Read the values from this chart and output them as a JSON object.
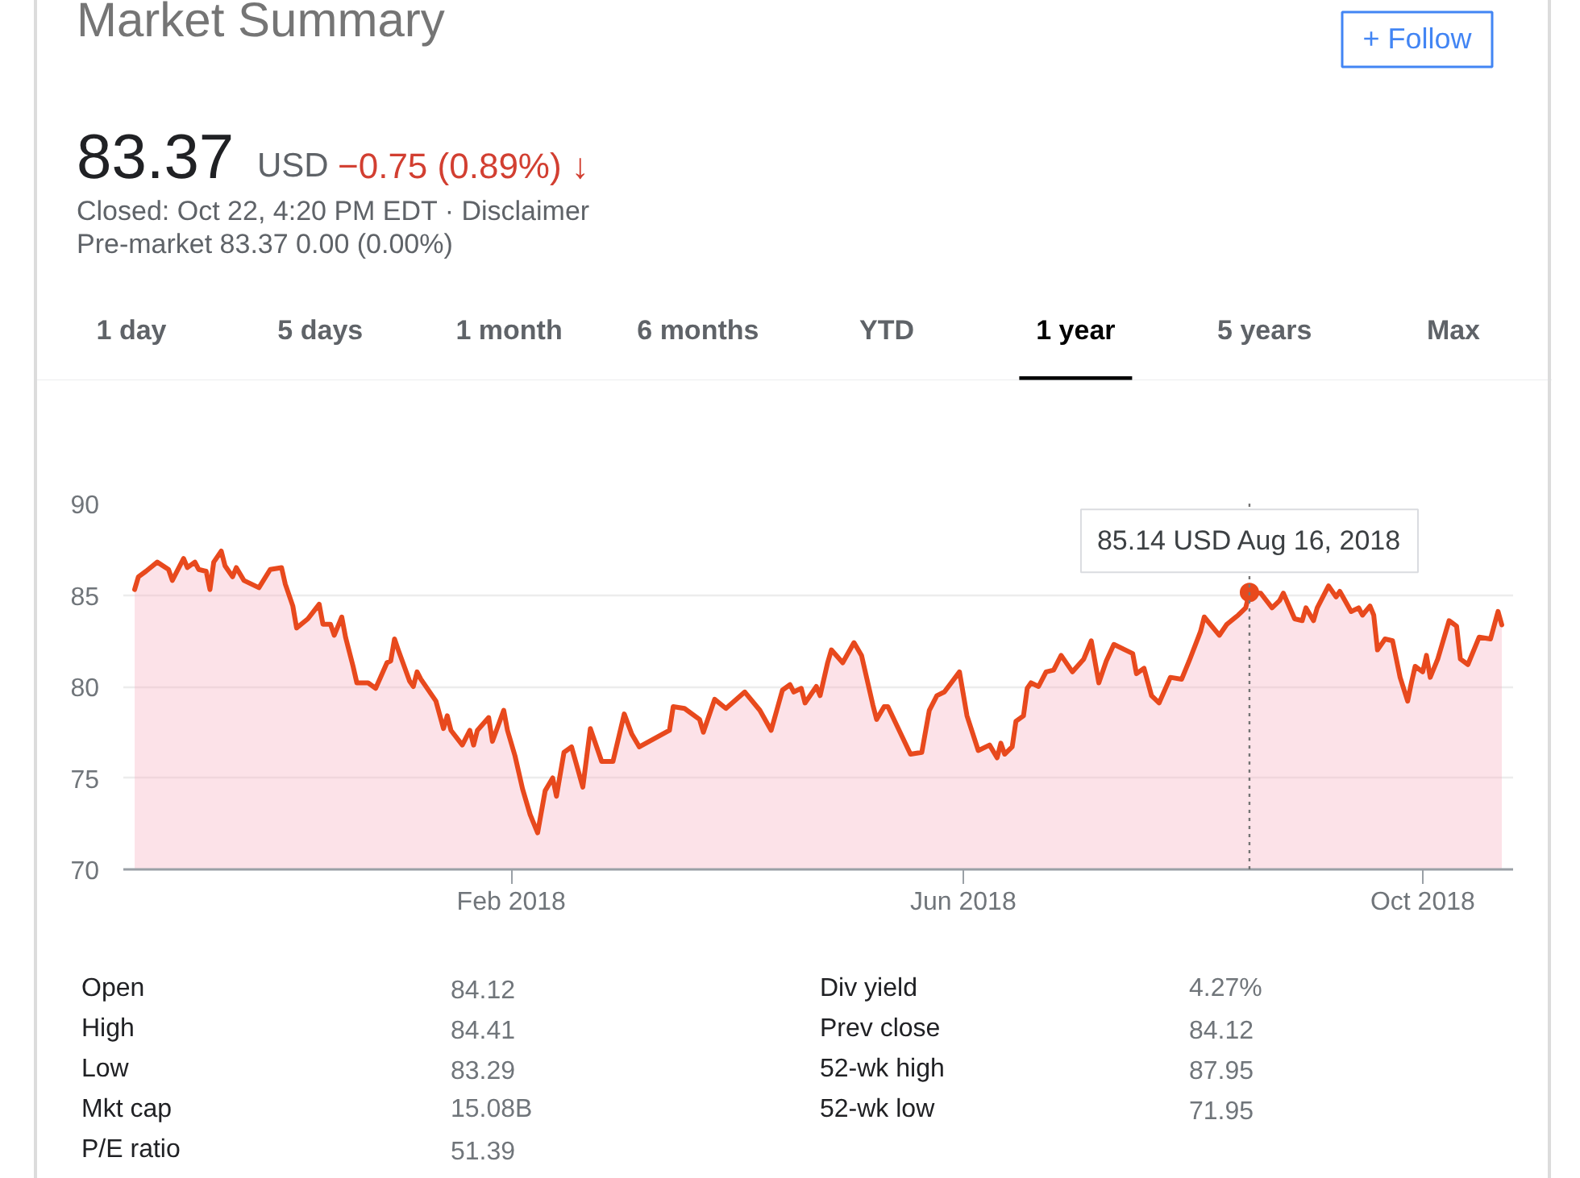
{
  "chart_data": {
    "type": "area",
    "title": "Market Summary",
    "color": "#e8491d",
    "x": [
      "2017-10-24",
      "2017-10-25",
      "2017-10-27",
      "2017-10-30",
      "2017-11-02",
      "2017-11-03",
      "2017-11-06",
      "2017-11-07",
      "2017-11-09",
      "2017-11-10",
      "2017-11-12",
      "2017-11-13",
      "2017-11-14",
      "2017-11-16",
      "2017-11-17",
      "2017-11-19",
      "2017-11-20",
      "2017-11-22",
      "2017-11-26",
      "2017-11-29",
      "2017-12-02",
      "2017-12-03",
      "2017-12-05",
      "2017-12-06",
      "2017-12-09",
      "2017-12-12",
      "2017-12-13",
      "2017-12-15",
      "2017-12-16",
      "2017-12-18",
      "2017-12-19",
      "2017-12-21",
      "2017-12-22",
      "2017-12-25",
      "2017-12-27",
      "2017-12-30",
      "2017-12-31",
      "2018-01-01",
      "2018-01-02",
      "2018-01-05",
      "2018-01-06",
      "2018-01-07",
      "2018-01-08",
      "2018-01-12",
      "2018-01-14",
      "2018-01-15",
      "2018-01-16",
      "2018-01-19",
      "2018-01-21",
      "2018-01-22",
      "2018-01-23",
      "2018-01-26",
      "2018-01-27",
      "2018-01-30",
      "2018-01-31",
      "2018-02-02",
      "2018-02-04",
      "2018-02-06",
      "2018-02-08",
      "2018-02-10",
      "2018-02-12",
      "2018-02-13",
      "2018-02-15",
      "2018-02-17",
      "2018-02-20",
      "2018-02-22",
      "2018-02-25",
      "2018-02-28",
      "2018-03-03",
      "2018-03-05",
      "2018-03-07",
      "2018-03-15",
      "2018-03-16",
      "2018-03-19",
      "2018-03-23",
      "2018-03-24",
      "2018-03-27",
      "2018-03-30",
      "2018-04-04",
      "2018-04-08",
      "2018-04-11",
      "2018-04-14",
      "2018-04-16",
      "2018-04-17",
      "2018-04-19",
      "2018-04-20",
      "2018-04-23",
      "2018-04-24",
      "2018-04-26",
      "2018-04-27",
      "2018-04-30",
      "2018-05-03",
      "2018-05-05",
      "2018-05-08",
      "2018-05-09",
      "2018-05-11",
      "2018-05-12",
      "2018-05-15",
      "2018-05-18",
      "2018-05-21",
      "2018-05-23",
      "2018-05-25",
      "2018-05-27",
      "2018-05-31",
      "2018-06-02",
      "2018-06-05",
      "2018-06-08",
      "2018-06-10",
      "2018-06-11",
      "2018-06-12",
      "2018-06-14",
      "2018-06-15",
      "2018-06-17",
      "2018-06-18",
      "2018-06-19",
      "2018-06-21",
      "2018-06-23",
      "2018-06-25",
      "2018-06-27",
      "2018-06-30",
      "2018-07-03",
      "2018-07-05",
      "2018-07-07",
      "2018-07-09",
      "2018-07-11",
      "2018-07-16",
      "2018-07-17",
      "2018-07-19",
      "2018-07-21",
      "2018-07-23",
      "2018-07-26",
      "2018-07-29",
      "2018-07-31",
      "2018-08-03",
      "2018-08-04",
      "2018-08-08",
      "2018-08-10",
      "2018-08-13",
      "2018-08-15",
      "2018-08-16",
      "2018-08-19",
      "2018-08-22",
      "2018-08-24",
      "2018-08-25",
      "2018-08-28",
      "2018-08-30",
      "2018-08-31",
      "2018-09-02",
      "2018-09-03",
      "2018-09-06",
      "2018-09-08",
      "2018-09-09",
      "2018-09-12",
      "2018-09-14",
      "2018-09-15",
      "2018-09-17",
      "2018-09-18",
      "2018-09-19",
      "2018-09-21",
      "2018-09-23",
      "2018-09-25",
      "2018-09-27",
      "2018-09-28",
      "2018-09-29",
      "2018-10-01",
      "2018-10-02",
      "2018-10-03",
      "2018-10-05",
      "2018-10-08",
      "2018-10-10",
      "2018-10-11",
      "2018-10-13",
      "2018-10-16",
      "2018-10-19",
      "2018-10-21",
      "2018-10-22"
    ],
    "values": [
      85.3,
      86.0,
      86.3,
      86.8,
      86.4,
      85.8,
      87.0,
      86.5,
      86.8,
      86.4,
      86.3,
      85.3,
      86.8,
      87.4,
      86.6,
      86.0,
      86.5,
      85.8,
      85.4,
      86.4,
      86.5,
      85.6,
      84.4,
      83.2,
      83.7,
      84.5,
      83.4,
      83.4,
      82.8,
      83.8,
      82.7,
      81.1,
      80.2,
      80.2,
      79.9,
      81.3,
      81.4,
      82.6,
      82.0,
      80.3,
      80.0,
      80.8,
      80.4,
      79.2,
      77.7,
      78.4,
      77.6,
      76.8,
      77.6,
      76.8,
      77.6,
      78.3,
      77.0,
      78.7,
      77.6,
      76.2,
      74.4,
      73.0,
      72.0,
      74.3,
      75.0,
      74.0,
      76.4,
      76.7,
      74.5,
      77.7,
      75.9,
      75.9,
      78.5,
      77.4,
      76.7,
      77.6,
      78.9,
      78.8,
      78.2,
      77.5,
      79.3,
      78.8,
      79.7,
      78.7,
      77.6,
      79.8,
      80.1,
      79.7,
      79.9,
      79.1,
      80.0,
      79.5,
      81.3,
      82.0,
      81.3,
      82.4,
      81.7,
      79.0,
      78.2,
      78.9,
      78.9,
      77.6,
      76.3,
      76.4,
      78.7,
      79.5,
      79.7,
      80.8,
      78.4,
      76.5,
      76.8,
      76.1,
      76.9,
      76.3,
      76.7,
      78.1,
      78.4,
      79.9,
      80.2,
      80.0,
      80.8,
      80.9,
      81.7,
      80.8,
      81.5,
      82.5,
      80.2,
      81.4,
      82.3,
      81.8,
      80.7,
      81.0,
      79.5,
      79.1,
      80.5,
      80.4,
      81.4,
      83.0,
      83.8,
      82.8,
      83.4,
      83.9,
      84.3,
      85.14,
      85.1,
      84.3,
      84.7,
      85.1,
      83.7,
      83.6,
      84.3,
      83.6,
      84.3,
      85.5,
      84.9,
      85.2,
      84.1,
      84.3,
      83.9,
      84.4,
      83.9,
      82.0,
      82.6,
      82.5,
      80.5,
      79.2,
      80.2,
      81.1,
      80.8,
      81.7,
      80.5,
      81.5,
      83.6,
      83.3,
      81.5,
      81.2,
      82.7,
      82.6,
      84.1,
      83.37
    ],
    "xlim": [
      "2017-10-21",
      "2018-10-25"
    ],
    "ylim": [
      70,
      90
    ],
    "yticks": [
      70,
      75,
      80,
      85,
      90
    ],
    "xticks": [
      {
        "value": "2018-02-01",
        "label": "Feb 2018"
      },
      {
        "value": "2018-06-01",
        "label": "Jun 2018"
      },
      {
        "value": "2018-10-01",
        "label": "Oct 2018"
      }
    ],
    "grid": "y",
    "ref_lines": [
      {
        "axis": "x",
        "value": "2018-08-16",
        "color": "#757575",
        "line_style": "dotted"
      }
    ],
    "annotations": [
      "83.37",
      "USD",
      "−0.75 (0.89%) ↓",
      "Closed: Oct 22, 4:20 PM EDT · Disclaimer",
      "Pre-market 83.37 0.00 (0.00%)",
      "+ Follow",
      "1 day",
      "5 days",
      "1 month",
      "6 months",
      "YTD",
      "1 year",
      "5 years",
      "Max",
      "Open",
      "84.12",
      "High",
      "84.41",
      "Low",
      "83.29",
      "Mkt cap",
      "15.08B",
      "P/E ratio",
      "51.39",
      "Div yield",
      "4.27%",
      "Prev close",
      "84.12",
      "52-wk high",
      "87.95",
      "52-wk low",
      "71.95",
      {
        "text": "85.14 USD Aug 16, 2018",
        "x": "2018-08-16",
        "y": 85.14
      }
    ]
  }
}
